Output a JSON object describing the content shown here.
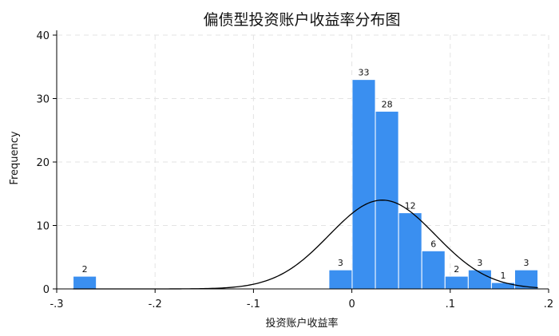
{
  "chart_data": {
    "type": "bar",
    "subtype": "histogram",
    "title": "偏债型投资账户收益率分布图",
    "xlabel": "投资账户收益率",
    "ylabel": "Frequency",
    "xlim": [
      -0.3,
      0.2
    ],
    "ylim": [
      0,
      40
    ],
    "x_ticks": [
      -0.3,
      -0.2,
      -0.1,
      0,
      0.1,
      0.2
    ],
    "x_tick_labels": [
      "-.3",
      "-.2",
      "-.1",
      "0",
      ".1",
      ".2"
    ],
    "y_ticks": [
      0,
      10,
      20,
      30,
      40
    ],
    "y_tick_labels": [
      "0",
      "10",
      "20",
      "30",
      "40"
    ],
    "grid": true,
    "bar_color": "#3a8ff0",
    "bins": [
      {
        "start": -0.2833,
        "end": -0.2597,
        "count": 2,
        "label": "2"
      },
      {
        "start": -0.0233,
        "end": 0.0003,
        "count": 3,
        "label": "3"
      },
      {
        "start": 0.0003,
        "end": 0.0239,
        "count": 33,
        "label": "33"
      },
      {
        "start": 0.0239,
        "end": 0.0475,
        "count": 28,
        "label": "28"
      },
      {
        "start": 0.0475,
        "end": 0.0711,
        "count": 12,
        "label": "12"
      },
      {
        "start": 0.0711,
        "end": 0.0947,
        "count": 6,
        "label": "6"
      },
      {
        "start": 0.0947,
        "end": 0.1183,
        "count": 2,
        "label": "2"
      },
      {
        "start": 0.1183,
        "end": 0.1419,
        "count": 3,
        "label": "3"
      },
      {
        "start": 0.1419,
        "end": 0.1655,
        "count": 1,
        "label": "1"
      },
      {
        "start": 0.1655,
        "end": 0.1891,
        "count": 3,
        "label": "3"
      }
    ],
    "normal_curve": {
      "mean": 0.031,
      "sd": 0.054,
      "peak": 14,
      "x_range": [
        -0.2833,
        0.1891
      ],
      "color": "#000000"
    }
  }
}
